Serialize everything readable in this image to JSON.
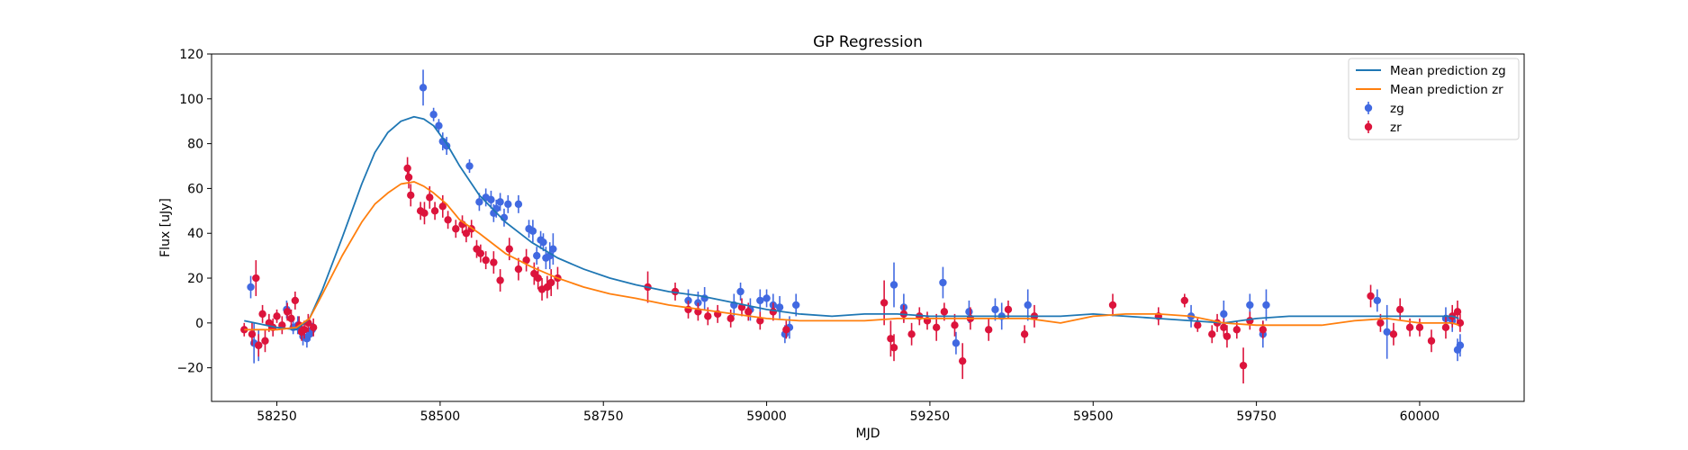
{
  "chart_data": {
    "type": "scatter",
    "title": "GP Regression",
    "xlabel": "MJD",
    "ylabel": "Flux [uJy]",
    "xlim": [
      58150,
      60160
    ],
    "ylim": [
      -35,
      120
    ],
    "xticks": [
      58250,
      58500,
      58750,
      59000,
      59250,
      59500,
      59750,
      60000
    ],
    "yticks": [
      -20,
      0,
      20,
      40,
      60,
      80,
      100,
      120
    ],
    "legend_position": "top-right",
    "legend": [
      {
        "label": "Mean prediction zg",
        "kind": "line",
        "color": "#1f77b4"
      },
      {
        "label": "Mean prediction zr",
        "kind": "line",
        "color": "#ff7f0e"
      },
      {
        "label": "zg",
        "kind": "errorbar",
        "color": "#4169e1"
      },
      {
        "label": "zr",
        "kind": "errorbar",
        "color": "#dc143c"
      }
    ],
    "lines": [
      {
        "name": "Mean prediction zg",
        "color": "#1f77b4",
        "x": [
          58200,
          58250,
          58280,
          58300,
          58320,
          58350,
          58380,
          58400,
          58420,
          58440,
          58460,
          58475,
          58490,
          58510,
          58530,
          58560,
          58600,
          58640,
          58680,
          58720,
          58760,
          58800,
          58850,
          58900,
          58950,
          59000,
          59050,
          59100,
          59150,
          59200,
          59250,
          59300,
          59350,
          59400,
          59450,
          59500,
          59550,
          59600,
          59650,
          59700,
          59750,
          59800,
          59850,
          59900,
          59950,
          60000,
          60050,
          60060
        ],
        "y": [
          1,
          -2,
          -3,
          2,
          15,
          38,
          62,
          76,
          85,
          90,
          92,
          91,
          88,
          80,
          70,
          57,
          45,
          36,
          29,
          24,
          20,
          17,
          14,
          12,
          9,
          6,
          4,
          3,
          4,
          4,
          3,
          3,
          3,
          3,
          3,
          4,
          3,
          2,
          1,
          0,
          2,
          3,
          3,
          3,
          3,
          3,
          3,
          2
        ]
      },
      {
        "name": "Mean prediction zr",
        "color": "#ff7f0e",
        "x": [
          58200,
          58250,
          58280,
          58300,
          58320,
          58350,
          58380,
          58400,
          58420,
          58440,
          58460,
          58475,
          58490,
          58510,
          58530,
          58560,
          58600,
          58640,
          58680,
          58720,
          58760,
          58800,
          58850,
          58900,
          58950,
          59000,
          59050,
          59100,
          59150,
          59200,
          59250,
          59300,
          59350,
          59400,
          59450,
          59500,
          59550,
          59600,
          59650,
          59700,
          59750,
          59800,
          59850,
          59900,
          59950,
          60000,
          60050,
          60060
        ],
        "y": [
          -3,
          -3,
          -2,
          2,
          13,
          30,
          45,
          53,
          58,
          62,
          63,
          61,
          58,
          53,
          46,
          40,
          31,
          25,
          20,
          16,
          13,
          11,
          8,
          6,
          4,
          2,
          1,
          1,
          1,
          2,
          2,
          2,
          2,
          2,
          0,
          3,
          4,
          4,
          3,
          0,
          -1,
          -1,
          -1,
          1,
          2,
          0,
          0,
          -1
        ]
      }
    ],
    "series": [
      {
        "name": "zg",
        "color": "#4169e1",
        "x": [
          58210,
          58215,
          58222,
          58265,
          58275,
          58282,
          58290,
          58296,
          58300,
          58304,
          58474,
          58490,
          58498,
          58504,
          58510,
          58545,
          58560,
          58570,
          58578,
          58582,
          58586,
          58592,
          58598,
          58604,
          58620,
          58636,
          58642,
          58648,
          58654,
          58658,
          58662,
          58668,
          58673,
          58880,
          58895,
          58905,
          58950,
          58960,
          58975,
          58990,
          59000,
          59010,
          59020,
          59028,
          59035,
          59045,
          59195,
          59210,
          59270,
          59290,
          59310,
          59350,
          59360,
          59400,
          59650,
          59700,
          59740,
          59760,
          59765,
          59935,
          59950,
          60040,
          60050,
          60058,
          60062
        ],
        "y": [
          16,
          -9,
          -10,
          6,
          -2,
          -1,
          -6,
          -7,
          -5,
          -3,
          105,
          93,
          88,
          81,
          79,
          70,
          54,
          56,
          55,
          49,
          51,
          54,
          47,
          53,
          53,
          42,
          41,
          30,
          37,
          36,
          29,
          30,
          33,
          10,
          9,
          11,
          8,
          14,
          6,
          10,
          11,
          8,
          7,
          -5,
          -2,
          8,
          17,
          7,
          18,
          -9,
          5,
          6,
          3,
          8,
          3,
          4,
          8,
          -5,
          8,
          10,
          -4,
          2,
          1,
          -12,
          -10
        ],
        "err": [
          5,
          9,
          7,
          4,
          3,
          4,
          4,
          4,
          3,
          3,
          8,
          3,
          3,
          4,
          4,
          3,
          4,
          4,
          4,
          4,
          4,
          4,
          4,
          4,
          4,
          4,
          5,
          4,
          4,
          4,
          5,
          6,
          7,
          5,
          5,
          5,
          5,
          4,
          5,
          5,
          4,
          5,
          5,
          4,
          5,
          5,
          10,
          6,
          7,
          5,
          5,
          5,
          6,
          7,
          5,
          6,
          5,
          6,
          7,
          5,
          12,
          5,
          5,
          5,
          5
        ]
      },
      {
        "name": "zr",
        "color": "#dc143c",
        "x": [
          58200,
          58212,
          58218,
          58222,
          58228,
          58232,
          58238,
          58244,
          58250,
          58258,
          58266,
          58272,
          58278,
          58284,
          58288,
          58292,
          58298,
          58306,
          58450,
          58452,
          58455,
          58470,
          58476,
          58484,
          58492,
          58504,
          58512,
          58524,
          58534,
          58540,
          58548,
          58556,
          58562,
          58570,
          58582,
          58592,
          58606,
          58620,
          58632,
          58644,
          58650,
          58656,
          58664,
          58670,
          58680,
          58818,
          58860,
          58880,
          58895,
          58910,
          58925,
          58945,
          58962,
          58972,
          58990,
          59010,
          59030,
          59180,
          59190,
          59195,
          59210,
          59222,
          59234,
          59246,
          59260,
          59272,
          59288,
          59300,
          59312,
          59340,
          59370,
          59395,
          59410,
          59530,
          59600,
          59640,
          59660,
          59682,
          59690,
          59700,
          59705,
          59720,
          59730,
          59740,
          59760,
          59925,
          59940,
          59960,
          59970,
          59985,
          60000,
          60018,
          60040,
          60050,
          60058,
          60062
        ],
        "y": [
          -3,
          -5,
          20,
          -10,
          4,
          -8,
          0,
          -2,
          3,
          -1,
          5,
          2,
          10,
          -1,
          -4,
          -3,
          0,
          -2,
          69,
          65,
          57,
          50,
          49,
          56,
          50,
          52,
          46,
          42,
          44,
          40,
          42,
          33,
          31,
          28,
          27,
          19,
          33,
          24,
          28,
          22,
          20,
          15,
          16,
          18,
          20,
          16,
          14,
          6,
          5,
          3,
          4,
          2,
          7,
          5,
          1,
          5,
          -3,
          9,
          -7,
          -11,
          4,
          -5,
          3,
          1,
          -2,
          5,
          -1,
          -17,
          2,
          -3,
          6,
          -5,
          3,
          8,
          3,
          10,
          -1,
          -5,
          0,
          -2,
          -6,
          -3,
          -19,
          1,
          -3,
          12,
          0,
          -5,
          6,
          -2,
          -2,
          -8,
          -2,
          3,
          5,
          0
        ],
        "err": [
          3,
          5,
          8,
          5,
          4,
          5,
          4,
          4,
          3,
          4,
          4,
          4,
          4,
          4,
          4,
          4,
          4,
          4,
          5,
          5,
          5,
          4,
          5,
          5,
          4,
          5,
          4,
          4,
          4,
          4,
          4,
          4,
          4,
          4,
          5,
          5,
          5,
          5,
          5,
          5,
          5,
          5,
          5,
          6,
          5,
          7,
          4,
          4,
          4,
          4,
          4,
          4,
          4,
          4,
          4,
          4,
          4,
          10,
          8,
          6,
          4,
          5,
          4,
          4,
          6,
          4,
          5,
          8,
          5,
          5,
          4,
          4,
          5,
          5,
          4,
          3,
          3,
          4,
          4,
          4,
          5,
          4,
          8,
          4,
          4,
          5,
          4,
          5,
          5,
          4,
          4,
          5,
          5,
          5,
          5,
          4
        ]
      }
    ]
  }
}
